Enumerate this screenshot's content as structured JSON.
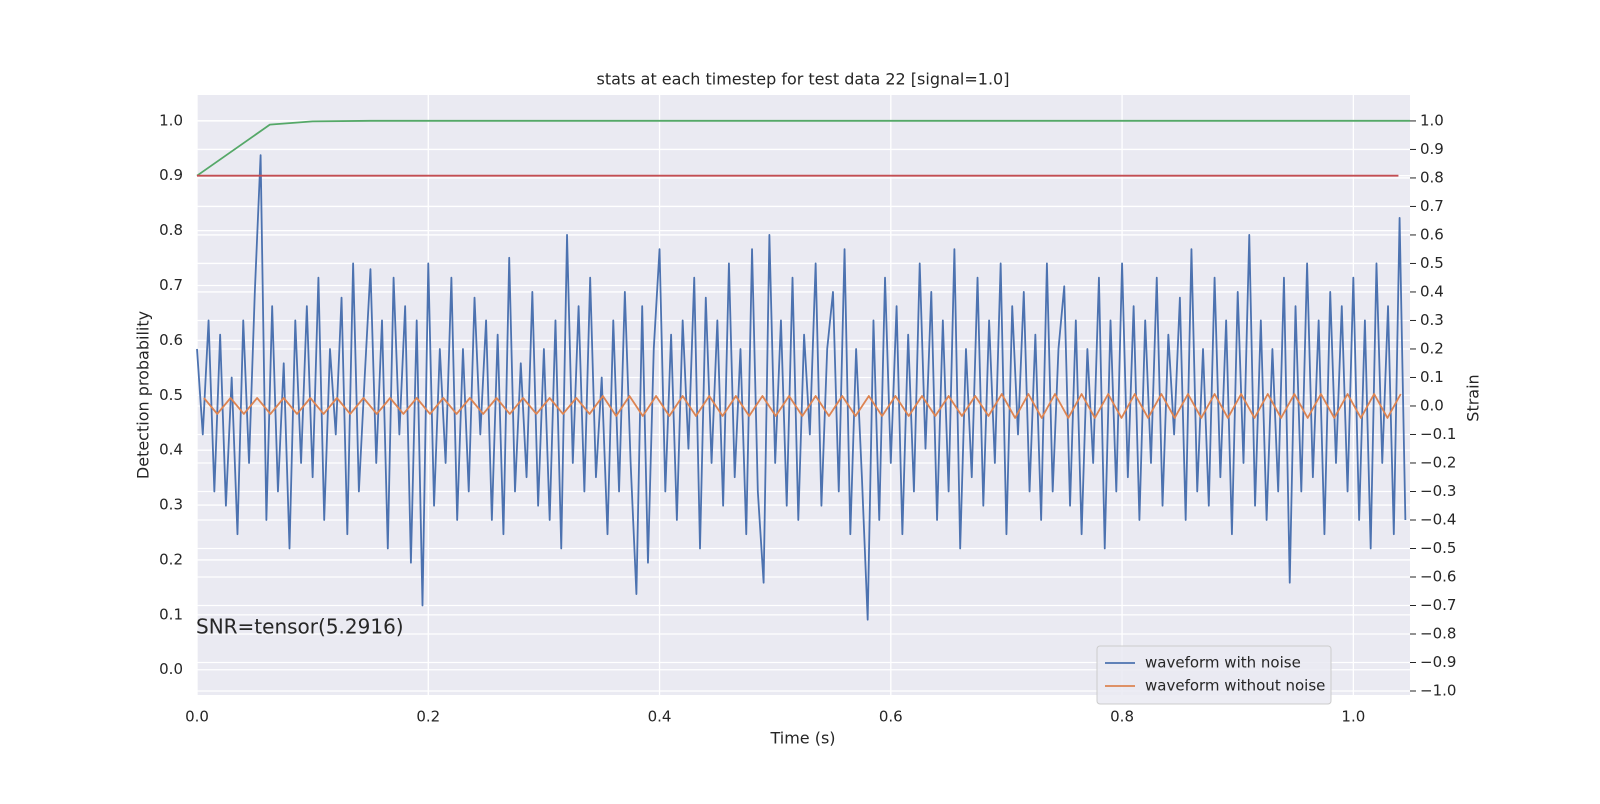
{
  "chart_data": {
    "type": "line",
    "title": "stats at each timestep for test data 22 [signal=1.0]",
    "x_label": "Time (s)",
    "y_label": "Detection probability",
    "y2_label": "Strain",
    "annotation": "SNR=tensor(5.2916)",
    "xlim": [
      0,
      1.049
    ],
    "ylim": [
      -0.046,
      1.047
    ],
    "y2lim": [
      -1.014,
      1.091
    ],
    "xticks": [
      {
        "value": 0,
        "label": "0.0"
      },
      0.2,
      0.4,
      0.6,
      0.8,
      {
        "value": 1,
        "label": "1.0"
      }
    ],
    "yticks": [
      {
        "value": 0,
        "label": "0.0"
      },
      0.1,
      0.2,
      0.3,
      0.4,
      0.5,
      0.6,
      0.7,
      0.8,
      0.9,
      {
        "value": 1,
        "label": "1.0"
      }
    ],
    "y2ticks": [
      {
        "value": -1,
        "label": "−1.0"
      },
      {
        "value": -0.9,
        "label": "−0.9"
      },
      {
        "value": -0.8,
        "label": "−0.8"
      },
      {
        "value": -0.7,
        "label": "−0.7"
      },
      {
        "value": -0.6,
        "label": "−0.6"
      },
      {
        "value": -0.5,
        "label": "−0.5"
      },
      {
        "value": -0.4,
        "label": "−0.4"
      },
      {
        "value": -0.3,
        "label": "−0.3"
      },
      {
        "value": -0.2,
        "label": "−0.2"
      },
      {
        "value": -0.1,
        "label": "−0.1"
      },
      {
        "value": 0,
        "label": "0.0"
      },
      0.1,
      0.2,
      0.3,
      0.4,
      0.5,
      0.6,
      0.7,
      0.8,
      0.9,
      {
        "value": 1,
        "label": "1.0"
      }
    ],
    "grid": true,
    "legend_position": "lower right",
    "series": [
      {
        "name": "waveform with noise",
        "color": "#4c72b0",
        "axis": "y2",
        "x": [
          0,
          0.005,
          0.01,
          0.015,
          0.02,
          0.025,
          0.03,
          0.035,
          0.04,
          0.045,
          0.05,
          0.055,
          0.06,
          0.065,
          0.07,
          0.075,
          0.08,
          0.085,
          0.09,
          0.095,
          0.1,
          0.105,
          0.11,
          0.115,
          0.12,
          0.125,
          0.13,
          0.135,
          0.14,
          0.145,
          0.15,
          0.155,
          0.16,
          0.165,
          0.17,
          0.175,
          0.18,
          0.185,
          0.19,
          0.195,
          0.2,
          0.205,
          0.21,
          0.215,
          0.22,
          0.225,
          0.23,
          0.235,
          0.24,
          0.245,
          0.25,
          0.255,
          0.26,
          0.265,
          0.27,
          0.275,
          0.28,
          0.285,
          0.29,
          0.295,
          0.3,
          0.305,
          0.31,
          0.315,
          0.32,
          0.325,
          0.33,
          0.335,
          0.34,
          0.345,
          0.35,
          0.355,
          0.36,
          0.365,
          0.37,
          0.375,
          0.38,
          0.385,
          0.39,
          0.395,
          0.4,
          0.405,
          0.41,
          0.415,
          0.42,
          0.425,
          0.43,
          0.435,
          0.44,
          0.445,
          0.45,
          0.455,
          0.46,
          0.465,
          0.47,
          0.475,
          0.48,
          0.485,
          0.49,
          0.495,
          0.5,
          0.505,
          0.51,
          0.515,
          0.52,
          0.525,
          0.53,
          0.535,
          0.54,
          0.545,
          0.55,
          0.555,
          0.56,
          0.565,
          0.57,
          0.575,
          0.58,
          0.585,
          0.59,
          0.595,
          0.6,
          0.605,
          0.61,
          0.615,
          0.62,
          0.625,
          0.63,
          0.635,
          0.64,
          0.645,
          0.65,
          0.655,
          0.66,
          0.665,
          0.67,
          0.675,
          0.68,
          0.685,
          0.69,
          0.695,
          0.7,
          0.705,
          0.71,
          0.715,
          0.72,
          0.725,
          0.73,
          0.735,
          0.74,
          0.745,
          0.75,
          0.755,
          0.76,
          0.765,
          0.77,
          0.775,
          0.78,
          0.785,
          0.79,
          0.795,
          0.8,
          0.805,
          0.81,
          0.815,
          0.82,
          0.825,
          0.83,
          0.835,
          0.84,
          0.845,
          0.85,
          0.855,
          0.86,
          0.865,
          0.87,
          0.875,
          0.88,
          0.885,
          0.89,
          0.895,
          0.9,
          0.905,
          0.91,
          0.915,
          0.92,
          0.925,
          0.93,
          0.935,
          0.94,
          0.945,
          0.95,
          0.955,
          0.96,
          0.965,
          0.97,
          0.975,
          0.98,
          0.985,
          0.99,
          0.995,
          1,
          1.005,
          1.01,
          1.015,
          1.02,
          1.025,
          1.03,
          1.035,
          1.04,
          1.045
        ],
        "values": [
          0.2,
          -0.1,
          0.3,
          -0.3,
          0.25,
          -0.35,
          0.1,
          -0.45,
          0.3,
          -0.2,
          0.4,
          0.88,
          -0.4,
          0.35,
          -0.3,
          0.15,
          -0.5,
          0.3,
          -0.2,
          0.35,
          -0.25,
          0.45,
          -0.4,
          0.2,
          -0.1,
          0.38,
          -0.45,
          0.5,
          -0.3,
          0.1,
          0.48,
          -0.2,
          0.3,
          -0.5,
          0.45,
          -0.1,
          0.35,
          -0.55,
          0.3,
          -0.7,
          0.5,
          -0.35,
          0.2,
          -0.2,
          0.45,
          -0.4,
          0.2,
          -0.3,
          0.38,
          -0.1,
          0.3,
          -0.4,
          0.25,
          -0.45,
          0.52,
          -0.3,
          0.15,
          -0.25,
          0.4,
          -0.35,
          0.2,
          -0.4,
          0.3,
          -0.5,
          0.6,
          -0.2,
          0.35,
          -0.3,
          0.45,
          -0.25,
          0.1,
          -0.45,
          0.3,
          -0.3,
          0.4,
          -0.2,
          -0.66,
          0.35,
          -0.55,
          0.2,
          0.55,
          -0.3,
          0.25,
          -0.4,
          0.3,
          -0.15,
          0.45,
          -0.5,
          0.38,
          -0.2,
          0.3,
          -0.35,
          0.5,
          -0.25,
          0.2,
          -0.45,
          0.55,
          -0.3,
          -0.62,
          0.6,
          -0.2,
          0.3,
          -0.35,
          0.45,
          -0.4,
          0.25,
          -0.1,
          0.5,
          -0.35,
          0.2,
          0.4,
          -0.3,
          0.55,
          -0.45,
          0.2,
          -0.25,
          -0.75,
          0.3,
          -0.4,
          0.45,
          -0.2,
          0.35,
          -0.45,
          0.25,
          -0.3,
          0.5,
          -0.15,
          0.4,
          -0.4,
          0.3,
          -0.3,
          0.55,
          -0.5,
          0.2,
          -0.25,
          0.45,
          -0.35,
          0.3,
          -0.2,
          0.5,
          -0.45,
          0.35,
          -0.1,
          0.4,
          -0.3,
          0.25,
          -0.4,
          0.5,
          -0.3,
          0.2,
          0.42,
          -0.35,
          0.3,
          -0.45,
          0.2,
          -0.2,
          0.45,
          -0.5,
          0.3,
          -0.3,
          0.5,
          -0.25,
          0.35,
          -0.4,
          0.3,
          -0.2,
          0.45,
          -0.35,
          0.25,
          -0.1,
          0.38,
          -0.4,
          0.55,
          -0.3,
          0.2,
          -0.35,
          0.45,
          -0.25,
          0.3,
          -0.45,
          0.4,
          -0.2,
          0.6,
          -0.35,
          0.3,
          -0.4,
          0.2,
          -0.3,
          0.45,
          -0.62,
          0.35,
          -0.3,
          0.5,
          -0.25,
          0.3,
          -0.45,
          0.4,
          -0.2,
          0.35,
          -0.3,
          0.45,
          -0.4,
          0.3,
          -0.5,
          0.5,
          -0.2,
          0.35,
          -0.45,
          0.66,
          -0.4
        ]
      },
      {
        "name": "waveform without noise",
        "color": "#dd8452",
        "axis": "y2",
        "x": [
          0.006,
          0.0175,
          0.029,
          0.0405,
          0.052,
          0.0635,
          0.075,
          0.0865,
          0.098,
          0.1095,
          0.121,
          0.1325,
          0.144,
          0.1555,
          0.167,
          0.1785,
          0.19,
          0.2015,
          0.213,
          0.2245,
          0.236,
          0.2475,
          0.259,
          0.2705,
          0.282,
          0.2935,
          0.305,
          0.3165,
          0.328,
          0.3395,
          0.351,
          0.3625,
          0.374,
          0.3855,
          0.397,
          0.4085,
          0.42,
          0.4315,
          0.443,
          0.4545,
          0.466,
          0.4775,
          0.489,
          0.5005,
          0.512,
          0.5235,
          0.535,
          0.5465,
          0.558,
          0.5695,
          0.581,
          0.5925,
          0.604,
          0.6155,
          0.627,
          0.6385,
          0.65,
          0.6615,
          0.673,
          0.6845,
          0.696,
          0.7075,
          0.719,
          0.7305,
          0.742,
          0.7535,
          0.765,
          0.7765,
          0.788,
          0.7995,
          0.811,
          0.8225,
          0.834,
          0.8455,
          0.857,
          0.8685,
          0.88,
          0.8915,
          0.903,
          0.9145,
          0.926,
          0.9375,
          0.949,
          0.9605,
          0.972,
          0.9835,
          0.995,
          1.0065,
          1.018,
          1.0295,
          1.041
        ],
        "values": [
          0.028,
          -0.028,
          0.028,
          -0.028,
          0.028,
          -0.028,
          0.028,
          -0.028,
          0.028,
          -0.028,
          0.028,
          -0.028,
          0.028,
          -0.028,
          0.028,
          -0.028,
          0.028,
          -0.028,
          0.028,
          -0.028,
          0.028,
          -0.028,
          0.028,
          -0.028,
          0.028,
          -0.028,
          0.028,
          -0.028,
          0.028,
          -0.028,
          0.035,
          -0.035,
          0.035,
          -0.035,
          0.035,
          -0.035,
          0.035,
          -0.035,
          0.035,
          -0.035,
          0.035,
          -0.035,
          0.035,
          -0.035,
          0.035,
          -0.035,
          0.035,
          -0.035,
          0.035,
          -0.035,
          0.035,
          -0.035,
          0.035,
          -0.035,
          0.035,
          -0.035,
          0.035,
          -0.035,
          0.035,
          -0.035,
          0.042,
          -0.042,
          0.042,
          -0.042,
          0.042,
          -0.042,
          0.042,
          -0.042,
          0.042,
          -0.042,
          0.042,
          -0.042,
          0.042,
          -0.042,
          0.042,
          -0.042,
          0.042,
          -0.042,
          0.042,
          -0.042,
          0.042,
          -0.042,
          0.042,
          -0.042,
          0.042,
          -0.042,
          0.042,
          -0.042,
          0.042,
          -0.042,
          0.042
        ]
      },
      {
        "color": "#55a868",
        "x": [
          0,
          0.063,
          0.1,
          0.15,
          1.049
        ],
        "values": [
          0.9,
          0.993,
          0.999,
          1.0,
          1.0
        ]
      },
      {
        "color": "#c44e52",
        "x": [
          0,
          1.039
        ],
        "values": [
          0.9,
          0.9
        ]
      }
    ]
  }
}
